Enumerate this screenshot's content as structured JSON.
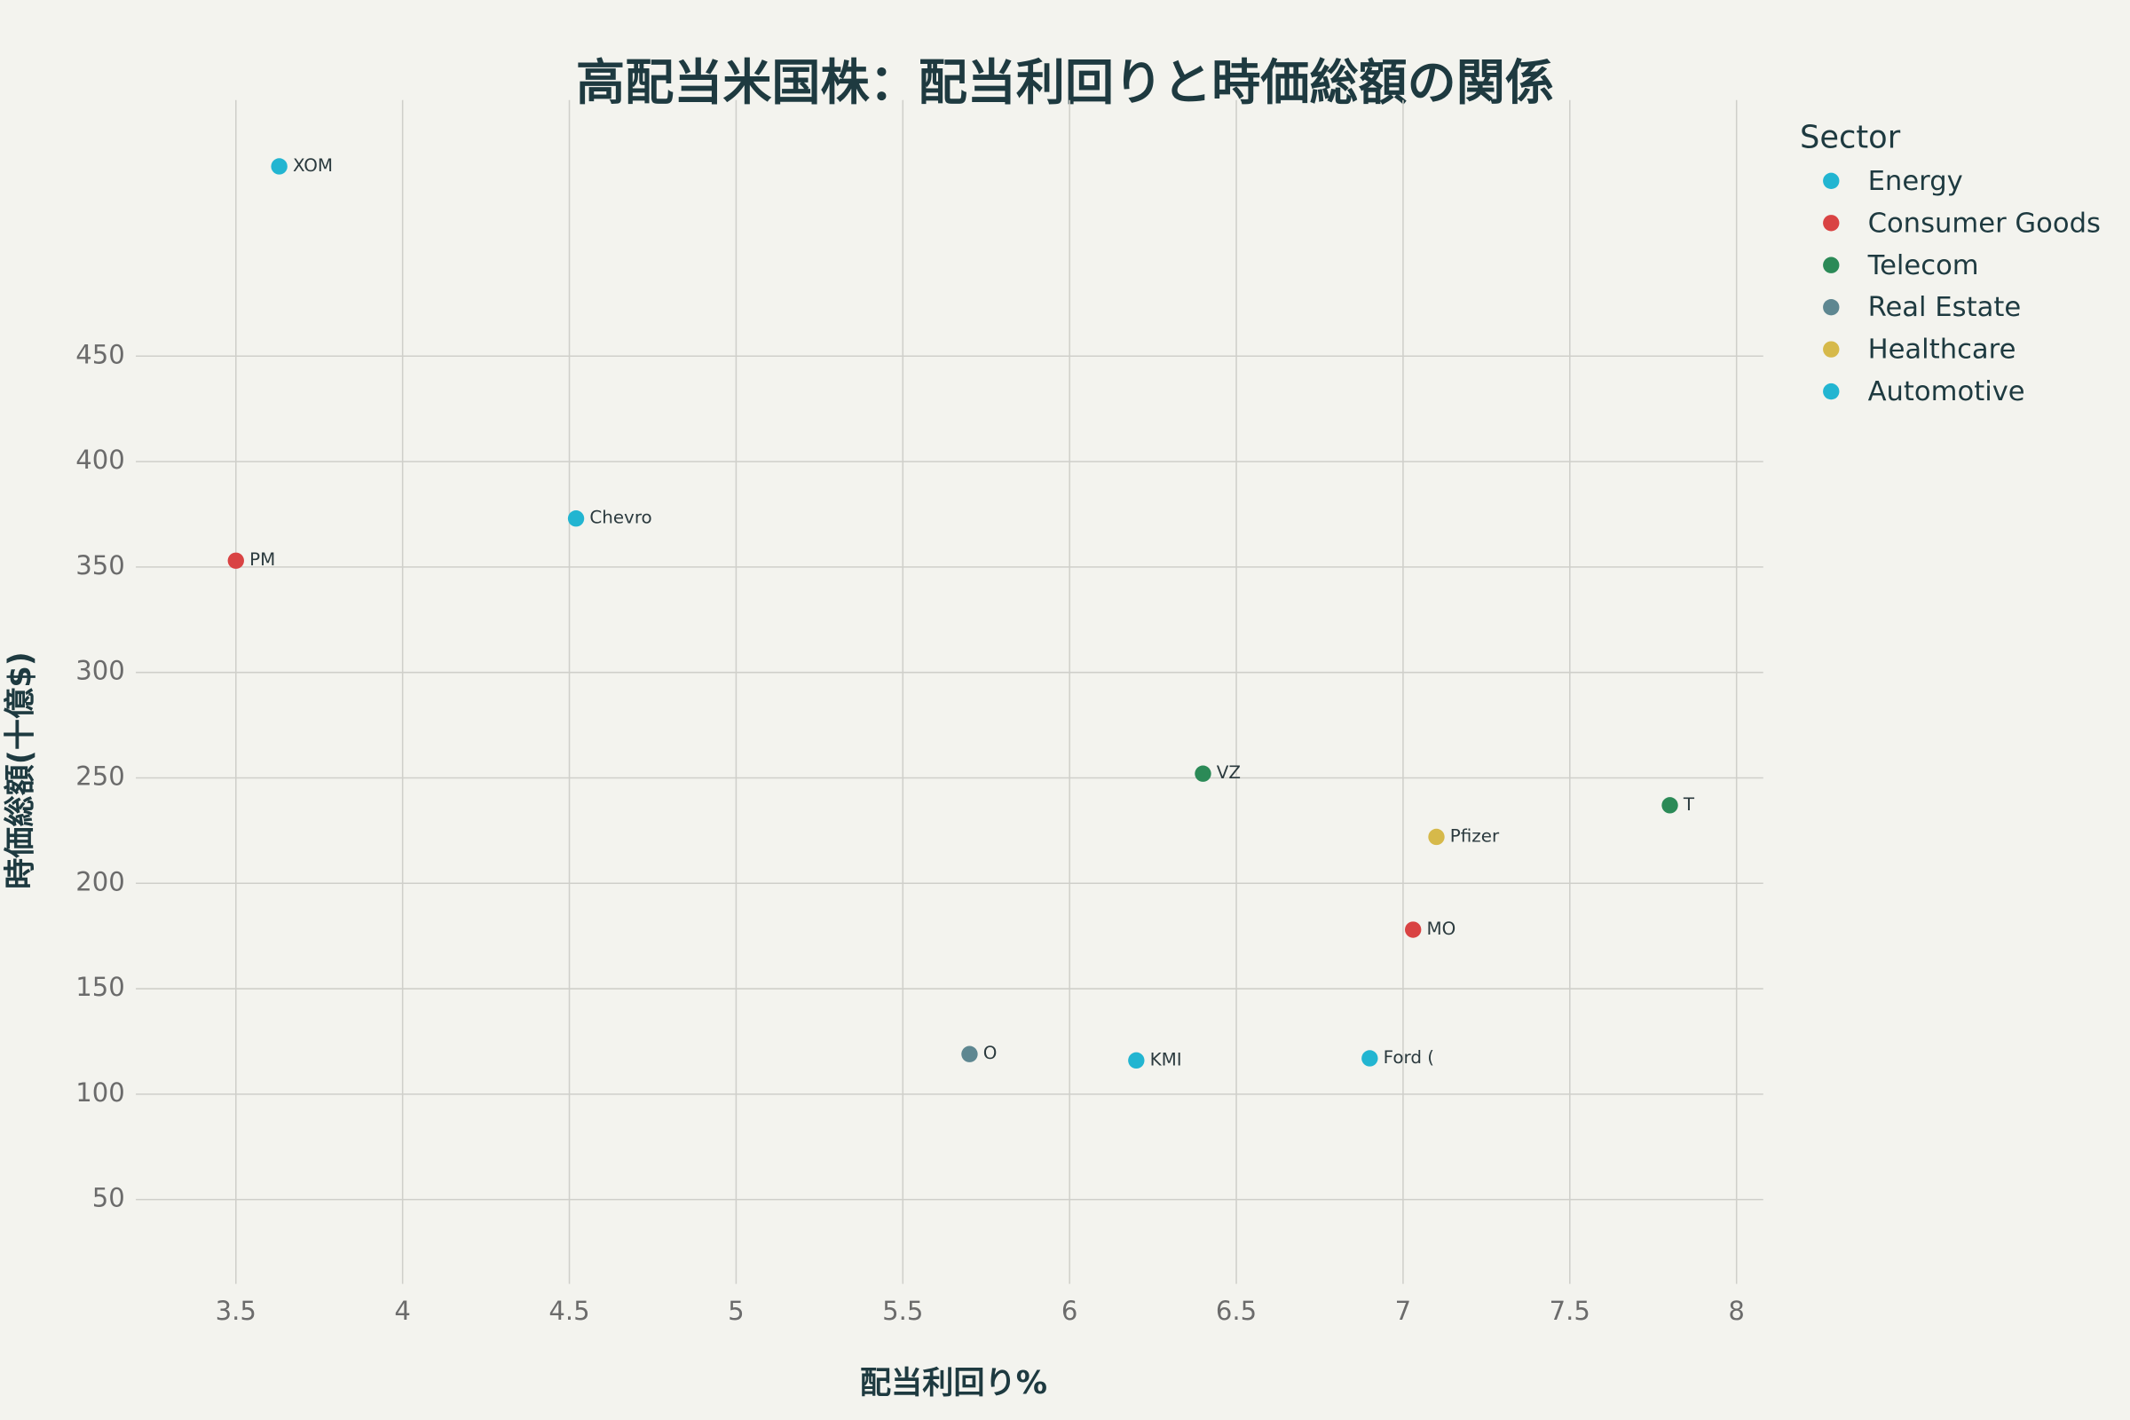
{
  "chart_data": {
    "type": "scatter",
    "title": "高配当米国株：配当利回りと時価総額の関係",
    "x_label": "配当利回り%",
    "y_label": "時価総額(十億$)",
    "legend_title": "Sector",
    "legend_position": "right",
    "grid": true,
    "xlim": [
      3.2,
      8.08
    ],
    "ylim": [
      10,
      565
    ],
    "xticks": [
      3.5,
      4,
      4.5,
      5,
      5.5,
      6,
      6.5,
      7,
      7.5,
      8
    ],
    "yticks": [
      50,
      100,
      150,
      200,
      250,
      300,
      350,
      400,
      450
    ],
    "series": [
      {
        "name": "Energy",
        "color": "#22b5d1",
        "x": [
          3.63,
          4.52,
          6.2
        ],
        "values": [
          540,
          373,
          116
        ],
        "labels": [
          "XOM",
          "Chevro",
          "KMI"
        ]
      },
      {
        "name": "Consumer Goods",
        "color": "#d94343",
        "x": [
          3.5,
          7.03
        ],
        "values": [
          353,
          178
        ],
        "labels": [
          "PM",
          "MO"
        ]
      },
      {
        "name": "Telecom",
        "color": "#2b8a57",
        "x": [
          6.4,
          7.8
        ],
        "values": [
          252,
          237
        ],
        "labels": [
          "VZ",
          "T"
        ]
      },
      {
        "name": "Real Estate",
        "color": "#5e8791",
        "x": [
          5.7
        ],
        "values": [
          119
        ],
        "labels": [
          "O"
        ]
      },
      {
        "name": "Healthcare",
        "color": "#d6b94a",
        "x": [
          7.1
        ],
        "values": [
          222
        ],
        "labels": [
          "Pfizer"
        ]
      },
      {
        "name": "Automotive",
        "color": "#22b5d1",
        "x": [
          6.9
        ],
        "values": [
          117
        ],
        "labels": [
          "Ford ("
        ]
      }
    ]
  }
}
